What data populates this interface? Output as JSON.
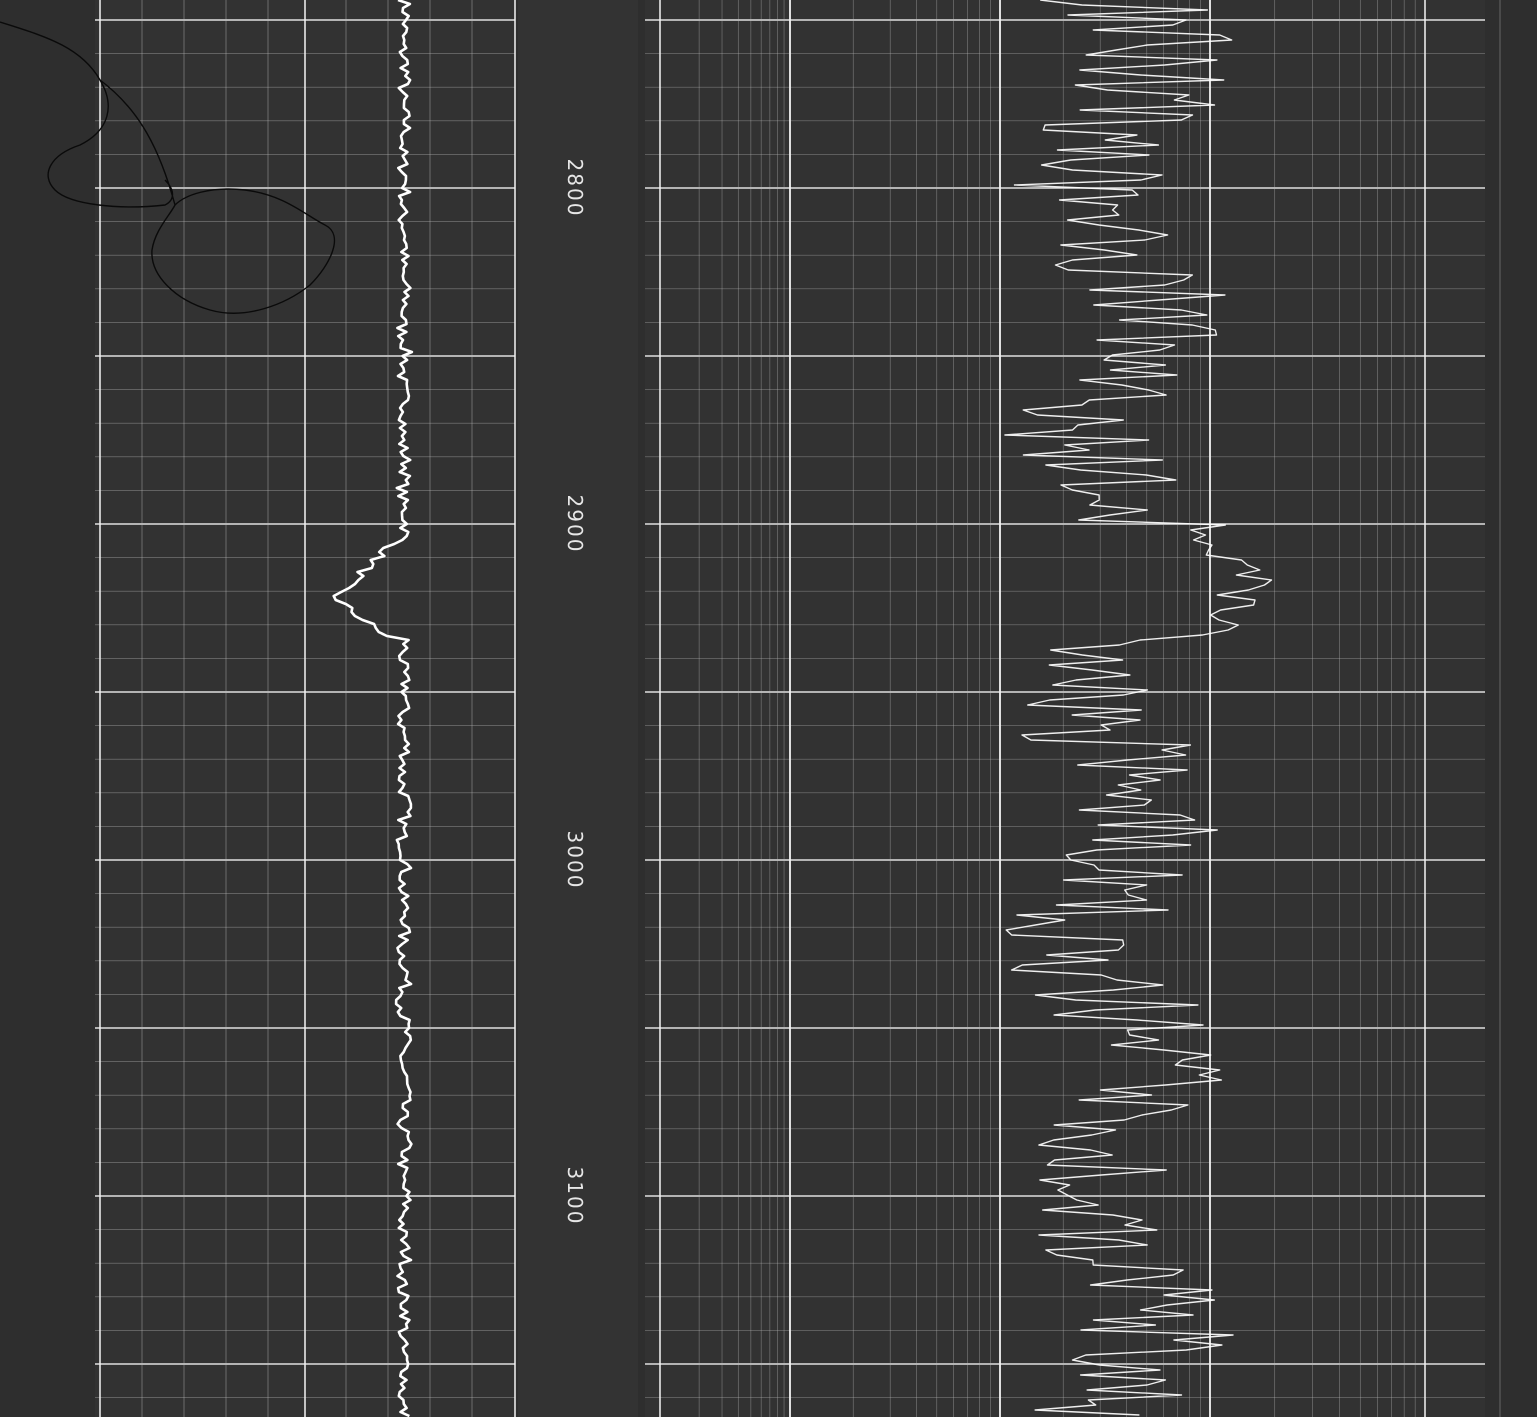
{
  "depth_labels": [
    "2800",
    "2900",
    "3000",
    "3100"
  ],
  "colors": {
    "background": "#2e2e2e",
    "track_background": "#3a3a3a",
    "depth_strip": "#333333",
    "grid_major": "#f2f2f2",
    "grid_minor": "#bdbdbd",
    "trace": "#ffffff",
    "overlay_scribble": "#0a0a0a"
  }
}
